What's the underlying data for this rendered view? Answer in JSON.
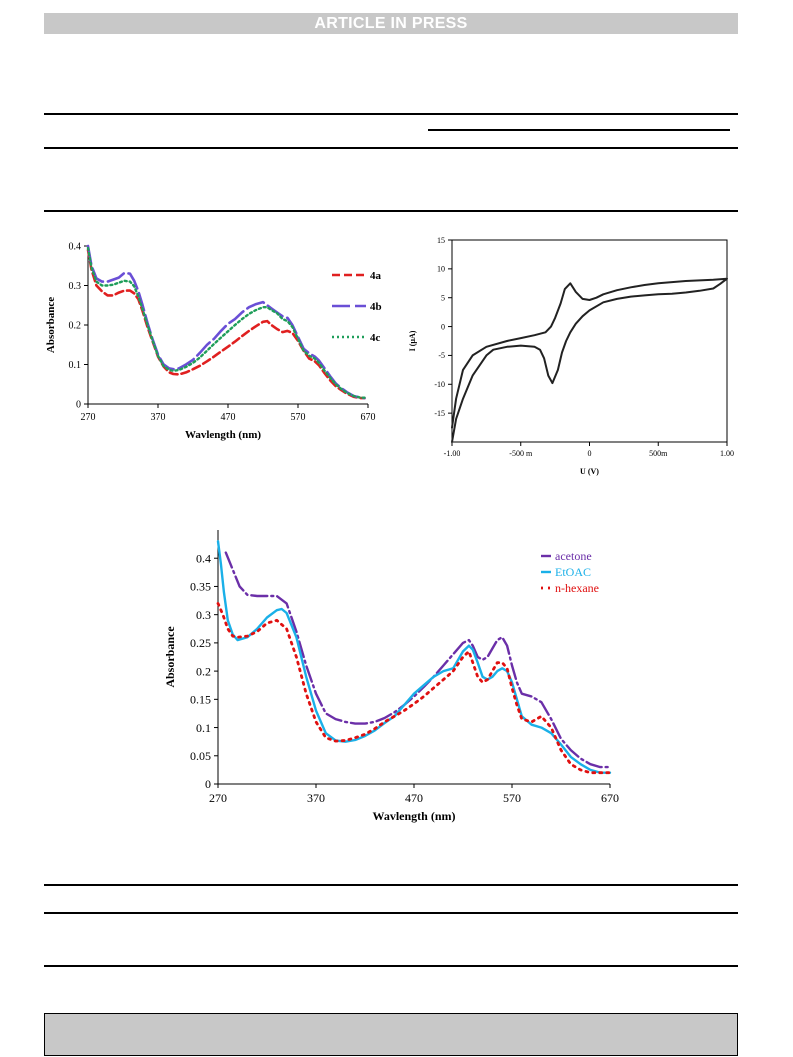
{
  "header": {
    "banner": "ARTICLE IN PRESS"
  },
  "chart_data": [
    {
      "type": "line",
      "xlabel": "Wavlength (nm)",
      "ylabel": "Absorbance",
      "xlim": [
        270,
        670
      ],
      "ylim": [
        0,
        0.4
      ],
      "xticks": [
        270,
        370,
        470,
        570,
        670
      ],
      "yticks": [
        0,
        0.1,
        0.2,
        0.3,
        0.4
      ],
      "grid": false,
      "legend_position": "right",
      "series": [
        {
          "name": "4a",
          "color": "#e02020",
          "dash": "8,4",
          "width": 2.6,
          "x": [
            270,
            275,
            282,
            290,
            298,
            306,
            314,
            322,
            330,
            336,
            342,
            348,
            355,
            362,
            370,
            378,
            386,
            392,
            400,
            410,
            420,
            430,
            440,
            450,
            460,
            470,
            480,
            490,
            500,
            510,
            520,
            526,
            532,
            540,
            548,
            555,
            562,
            570,
            578,
            586,
            594,
            600,
            608,
            616,
            624,
            632,
            640,
            650,
            660,
            665
          ],
          "y": [
            0.39,
            0.34,
            0.3,
            0.285,
            0.275,
            0.275,
            0.282,
            0.287,
            0.287,
            0.28,
            0.265,
            0.235,
            0.195,
            0.16,
            0.12,
            0.095,
            0.08,
            0.076,
            0.075,
            0.08,
            0.088,
            0.097,
            0.108,
            0.12,
            0.133,
            0.145,
            0.158,
            0.172,
            0.185,
            0.197,
            0.208,
            0.21,
            0.2,
            0.19,
            0.182,
            0.185,
            0.18,
            0.16,
            0.135,
            0.115,
            0.108,
            0.098,
            0.078,
            0.06,
            0.045,
            0.035,
            0.026,
            0.018,
            0.015,
            0.015
          ]
        },
        {
          "name": "4b",
          "color": "#6a4fd6",
          "dash": "18,5",
          "width": 2.6,
          "x": [
            270,
            275,
            282,
            290,
            298,
            306,
            314,
            322,
            330,
            336,
            342,
            348,
            355,
            362,
            370,
            378,
            386,
            392,
            400,
            410,
            420,
            430,
            440,
            450,
            460,
            470,
            480,
            490,
            500,
            510,
            520,
            526,
            532,
            540,
            548,
            555,
            562,
            570,
            578,
            586,
            594,
            600,
            608,
            616,
            624,
            632,
            640,
            650,
            660,
            665
          ],
          "y": [
            0.4,
            0.35,
            0.318,
            0.31,
            0.31,
            0.315,
            0.32,
            0.332,
            0.33,
            0.312,
            0.285,
            0.25,
            0.205,
            0.165,
            0.125,
            0.1,
            0.09,
            0.088,
            0.09,
            0.1,
            0.112,
            0.13,
            0.15,
            0.165,
            0.185,
            0.203,
            0.215,
            0.232,
            0.245,
            0.253,
            0.258,
            0.25,
            0.242,
            0.232,
            0.222,
            0.218,
            0.2,
            0.17,
            0.14,
            0.128,
            0.12,
            0.11,
            0.09,
            0.07,
            0.052,
            0.04,
            0.03,
            0.02,
            0.016,
            0.015
          ]
        },
        {
          "name": "4c",
          "color": "#1f9e5a",
          "dash": "2,3",
          "width": 2.4,
          "x": [
            270,
            275,
            282,
            290,
            298,
            306,
            314,
            322,
            330,
            336,
            342,
            348,
            355,
            362,
            370,
            378,
            386,
            392,
            400,
            410,
            420,
            430,
            440,
            450,
            460,
            470,
            480,
            490,
            500,
            510,
            520,
            526,
            532,
            540,
            548,
            555,
            562,
            570,
            578,
            586,
            594,
            600,
            608,
            616,
            624,
            632,
            640,
            650,
            660,
            665
          ],
          "y": [
            0.395,
            0.345,
            0.31,
            0.3,
            0.3,
            0.302,
            0.307,
            0.312,
            0.31,
            0.298,
            0.272,
            0.24,
            0.2,
            0.162,
            0.122,
            0.096,
            0.086,
            0.084,
            0.086,
            0.094,
            0.104,
            0.118,
            0.135,
            0.152,
            0.168,
            0.184,
            0.2,
            0.215,
            0.228,
            0.238,
            0.245,
            0.245,
            0.238,
            0.23,
            0.215,
            0.21,
            0.195,
            0.165,
            0.135,
            0.122,
            0.115,
            0.104,
            0.084,
            0.066,
            0.05,
            0.038,
            0.028,
            0.02,
            0.016,
            0.016
          ]
        }
      ]
    },
    {
      "type": "line",
      "xlabel": "U (V)",
      "ylabel": "I (µA)",
      "xlim": [
        -1,
        1
      ],
      "ylim": [
        -20,
        15
      ],
      "xticks": [
        -1,
        -0.5,
        0,
        0.5,
        1
      ],
      "xtick_labels": [
        "-1.00",
        "-500 m",
        "0",
        "500m",
        "1.00"
      ],
      "yticks": [
        15,
        10,
        5,
        0,
        -5,
        -10,
        -15
      ],
      "grid": false,
      "series": [
        {
          "name": "",
          "color": "#222222",
          "width": 2,
          "x": [
            -1.0,
            -0.97,
            -0.92,
            -0.85,
            -0.75,
            -0.6,
            -0.5,
            -0.4,
            -0.32,
            -0.28,
            -0.25,
            -0.21,
            -0.18,
            -0.14,
            -0.1,
            -0.05,
            0.0,
            0.05,
            0.1,
            0.2,
            0.3,
            0.4,
            0.5,
            0.6,
            0.7,
            0.8,
            0.9,
            0.95,
            1.0,
            0.95,
            0.9,
            0.8,
            0.7,
            0.6,
            0.5,
            0.4,
            0.3,
            0.2,
            0.1,
            0.0,
            -0.05,
            -0.1,
            -0.14,
            -0.17,
            -0.2,
            -0.23,
            -0.27,
            -0.3,
            -0.33,
            -0.36,
            -0.4,
            -0.5,
            -0.6,
            -0.7,
            -0.75,
            -0.85,
            -0.92,
            -0.97,
            -1.0
          ],
          "y": [
            -17.5,
            -12.5,
            -7.5,
            -5.0,
            -3.5,
            -2.5,
            -2.0,
            -1.5,
            -1.0,
            0.0,
            1.5,
            4.0,
            6.5,
            7.5,
            6.0,
            4.8,
            4.6,
            5.0,
            5.6,
            6.3,
            6.8,
            7.2,
            7.5,
            7.7,
            7.9,
            8.0,
            8.1,
            8.2,
            8.3,
            7.4,
            6.6,
            6.2,
            5.9,
            5.7,
            5.6,
            5.4,
            5.2,
            4.8,
            4.2,
            2.8,
            1.8,
            0.5,
            -1.0,
            -2.5,
            -4.5,
            -7.5,
            -9.8,
            -8.5,
            -5.5,
            -4.0,
            -3.5,
            -3.3,
            -3.5,
            -4.0,
            -5.0,
            -8.5,
            -12.5,
            -16.0,
            -20.0
          ]
        }
      ]
    },
    {
      "type": "line",
      "xlabel": "Wavlength (nm)",
      "ylabel": "Absorbance",
      "xlim": [
        270,
        670
      ],
      "ylim": [
        0,
        0.45
      ],
      "xticks": [
        270,
        370,
        470,
        570,
        670
      ],
      "yticks": [
        0,
        0.05,
        0.1,
        0.15,
        0.2,
        0.25,
        0.3,
        0.35,
        0.4
      ],
      "grid": false,
      "legend_position": "top-right",
      "series": [
        {
          "name": "acetone",
          "color": "#6b2fa8",
          "dash": "16,4,2,4",
          "width": 2.4,
          "x": [
            278,
            285,
            292,
            300,
            310,
            320,
            330,
            340,
            350,
            360,
            370,
            380,
            390,
            400,
            410,
            420,
            430,
            440,
            450,
            460,
            470,
            480,
            490,
            500,
            510,
            520,
            526,
            530,
            535,
            540,
            545,
            550,
            555,
            560,
            565,
            570,
            575,
            580,
            590,
            600,
            610,
            620,
            630,
            640,
            650,
            660,
            670
          ],
          "y": [
            0.41,
            0.38,
            0.35,
            0.335,
            0.333,
            0.333,
            0.333,
            0.32,
            0.27,
            0.21,
            0.16,
            0.125,
            0.115,
            0.11,
            0.107,
            0.107,
            0.11,
            0.117,
            0.127,
            0.14,
            0.155,
            0.172,
            0.19,
            0.21,
            0.23,
            0.25,
            0.255,
            0.245,
            0.225,
            0.22,
            0.225,
            0.24,
            0.255,
            0.26,
            0.245,
            0.21,
            0.18,
            0.16,
            0.155,
            0.145,
            0.115,
            0.08,
            0.06,
            0.045,
            0.035,
            0.03,
            0.03
          ]
        },
        {
          "name": "EtOAC",
          "color": "#1ab0e8",
          "dash": "",
          "width": 2.4,
          "x": [
            270,
            273,
            276,
            280,
            285,
            290,
            300,
            310,
            320,
            330,
            335,
            340,
            350,
            360,
            370,
            380,
            390,
            400,
            410,
            420,
            430,
            440,
            450,
            460,
            470,
            480,
            490,
            500,
            510,
            520,
            526,
            530,
            535,
            540,
            545,
            550,
            555,
            560,
            565,
            570,
            575,
            580,
            590,
            600,
            610,
            620,
            630,
            640,
            650,
            660,
            670
          ],
          "y": [
            0.43,
            0.39,
            0.34,
            0.29,
            0.265,
            0.255,
            0.26,
            0.275,
            0.295,
            0.308,
            0.31,
            0.303,
            0.26,
            0.19,
            0.13,
            0.09,
            0.077,
            0.075,
            0.078,
            0.085,
            0.095,
            0.108,
            0.12,
            0.14,
            0.16,
            0.175,
            0.19,
            0.2,
            0.205,
            0.235,
            0.245,
            0.238,
            0.215,
            0.19,
            0.185,
            0.19,
            0.2,
            0.205,
            0.2,
            0.18,
            0.15,
            0.12,
            0.105,
            0.1,
            0.09,
            0.07,
            0.048,
            0.035,
            0.025,
            0.02,
            0.02
          ]
        },
        {
          "name": "n-hexane",
          "color": "#e01010",
          "dash": "2,5",
          "width": 2.8,
          "x": [
            270,
            275,
            280,
            285,
            290,
            300,
            310,
            320,
            330,
            340,
            350,
            360,
            370,
            380,
            390,
            400,
            410,
            420,
            430,
            440,
            450,
            460,
            470,
            480,
            490,
            500,
            510,
            520,
            526,
            530,
            535,
            540,
            545,
            550,
            555,
            560,
            565,
            570,
            575,
            580,
            590,
            600,
            610,
            620,
            630,
            640,
            650,
            660,
            670
          ],
          "y": [
            0.32,
            0.3,
            0.275,
            0.262,
            0.26,
            0.262,
            0.27,
            0.285,
            0.29,
            0.275,
            0.225,
            0.16,
            0.11,
            0.082,
            0.076,
            0.077,
            0.082,
            0.088,
            0.098,
            0.11,
            0.12,
            0.13,
            0.142,
            0.155,
            0.17,
            0.185,
            0.2,
            0.225,
            0.235,
            0.215,
            0.19,
            0.18,
            0.185,
            0.2,
            0.215,
            0.215,
            0.205,
            0.17,
            0.14,
            0.115,
            0.11,
            0.12,
            0.1,
            0.06,
            0.035,
            0.025,
            0.02,
            0.02,
            0.02
          ]
        }
      ]
    }
  ]
}
